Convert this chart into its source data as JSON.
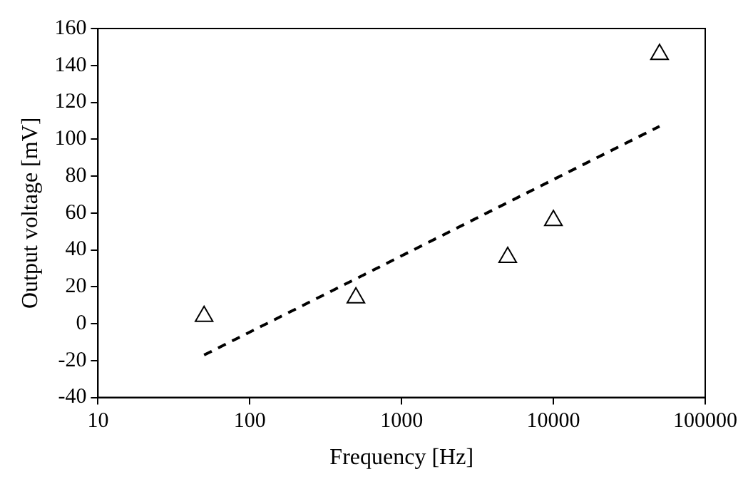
{
  "chart_data": {
    "type": "scatter",
    "xlabel": "Frequency [Hz]",
    "ylabel": "Output voltage [mV]",
    "log": "x",
    "grid": false,
    "legend": false,
    "xlim": [
      10,
      100000
    ],
    "xticks": [
      10,
      100,
      1000,
      10000,
      100000
    ],
    "ylim": [
      -40,
      160
    ],
    "yticks": [
      -40,
      -20,
      0,
      20,
      40,
      60,
      80,
      100,
      120,
      140,
      160
    ],
    "series": [
      {
        "type": "scatter",
        "color": "#000000",
        "marker": "triangle",
        "x": [
          50,
          500,
          5000,
          10000,
          50000
        ],
        "values": [
          4,
          14,
          36,
          56,
          146
        ]
      },
      {
        "type": "line",
        "color": "#000000",
        "marker": "none",
        "line_style": "dashed",
        "x": [
          50,
          50000
        ],
        "values": [
          -17,
          107
        ]
      }
    ]
  }
}
